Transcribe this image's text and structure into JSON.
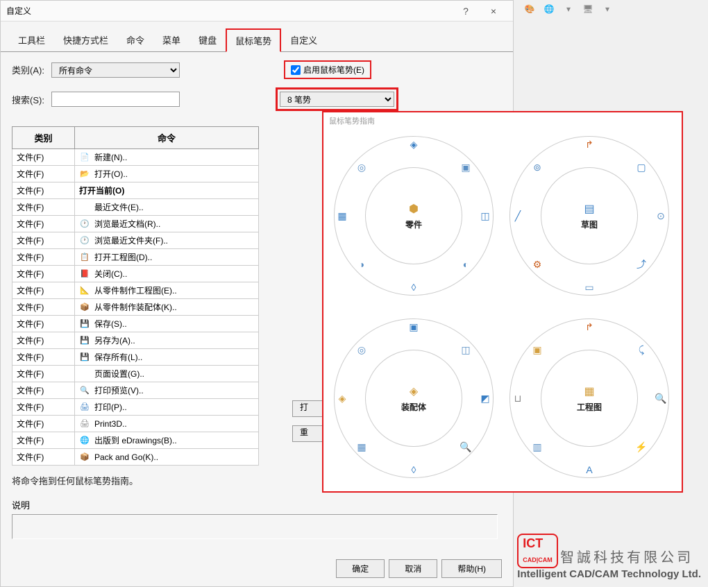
{
  "dialog": {
    "title": "自定义",
    "help_icon": "?",
    "close_icon": "×"
  },
  "tabs": [
    {
      "label": "工具栏",
      "active": false
    },
    {
      "label": "快捷方式栏",
      "active": false
    },
    {
      "label": "命令",
      "active": false
    },
    {
      "label": "菜单",
      "active": false
    },
    {
      "label": "键盘",
      "active": false
    },
    {
      "label": "鼠标笔势",
      "active": true
    },
    {
      "label": "自定义",
      "active": false
    }
  ],
  "form": {
    "category_label": "类别(A):",
    "category_value": "所有命令",
    "enable_gesture_label": "启用鼠标笔势(E)",
    "enable_gesture_checked": true,
    "search_label": "搜索(S):",
    "gesture_count_value": "8 笔势"
  },
  "table": {
    "col_category": "类别",
    "col_command": "命令",
    "rows": [
      {
        "cat": "文件(F)",
        "cmd": "新建(N)..",
        "icon": "📄",
        "icon_color": "#888"
      },
      {
        "cat": "文件(F)",
        "cmd": "打开(O)..",
        "icon": "📂",
        "icon_color": "#d4a040"
      },
      {
        "cat": "文件(F)",
        "cmd": "打开当前(O)",
        "icon": "",
        "bold": true
      },
      {
        "cat": "文件(F)",
        "cmd": "最近文件(E)..",
        "icon": "",
        "indent": true
      },
      {
        "cat": "文件(F)",
        "cmd": "浏览最近文档(R)..",
        "icon": "🕐",
        "icon_color": "#3a7fc4"
      },
      {
        "cat": "文件(F)",
        "cmd": "浏览最近文件夹(F)..",
        "icon": "🕐",
        "icon_color": "#3a7fc4"
      },
      {
        "cat": "文件(F)",
        "cmd": "打开工程图(D)..",
        "icon": "📋",
        "icon_color": "#4a9f4a"
      },
      {
        "cat": "文件(F)",
        "cmd": "关闭(C)..",
        "icon": "📕",
        "icon_color": "#cc4040"
      },
      {
        "cat": "文件(F)",
        "cmd": "从零件制作工程图(E)..",
        "icon": "📐",
        "icon_color": "#d4a040"
      },
      {
        "cat": "文件(F)",
        "cmd": "从零件制作装配体(K)..",
        "icon": "📦",
        "icon_color": "#d4a040"
      },
      {
        "cat": "文件(F)",
        "cmd": "保存(S)..",
        "icon": "💾",
        "icon_color": "#3a7fc4"
      },
      {
        "cat": "文件(F)",
        "cmd": "另存为(A)..",
        "icon": "💾",
        "icon_color": "#3a7fc4"
      },
      {
        "cat": "文件(F)",
        "cmd": "保存所有(L)..",
        "icon": "💾",
        "icon_color": "#3a7fc4"
      },
      {
        "cat": "文件(F)",
        "cmd": "页面设置(G)..",
        "icon": "",
        "indent": true
      },
      {
        "cat": "文件(F)",
        "cmd": "打印预览(V)..",
        "icon": "🔍",
        "icon_color": "#888"
      },
      {
        "cat": "文件(F)",
        "cmd": "打印(P)..",
        "icon": "🖨",
        "icon_color": "#3a7fc4"
      },
      {
        "cat": "文件(F)",
        "cmd": "Print3D..",
        "icon": "🖨",
        "icon_color": "#888"
      },
      {
        "cat": "文件(F)",
        "cmd": "出版到 eDrawings(B)..",
        "icon": "🌐",
        "icon_color": "#d4a040"
      },
      {
        "cat": "文件(F)",
        "cmd": "Pack and Go(K)..",
        "icon": "📦",
        "icon_color": "#888"
      }
    ]
  },
  "hint": "将命令拖到任何鼠标笔势指南。",
  "desc_label": "说明",
  "partial_buttons": [
    "打",
    "重"
  ],
  "buttons": {
    "ok": "确定",
    "cancel": "取消",
    "help": "帮助(H)"
  },
  "gesture_guide": {
    "title": "鼠标笔势指南",
    "wheels": [
      {
        "label": "零件",
        "center_icon": "⬢",
        "center_color": "#d4a040",
        "icons": [
          {
            "glyph": "◈",
            "color": "#3a7fc4"
          },
          {
            "glyph": "▣",
            "color": "#5a8fc4"
          },
          {
            "glyph": "◫",
            "color": "#3a7fc4"
          },
          {
            "glyph": "◐",
            "color": "#5a8fc4"
          },
          {
            "glyph": "◊",
            "color": "#3a7fc4"
          },
          {
            "glyph": "◑",
            "color": "#5a8fc4"
          },
          {
            "glyph": "▦",
            "color": "#3a7fc4"
          },
          {
            "glyph": "◎",
            "color": "#5a8fc4"
          }
        ]
      },
      {
        "label": "草图",
        "center_icon": "▤",
        "center_color": "#3a7fc4",
        "icons": [
          {
            "glyph": "↱",
            "color": "#cc6020"
          },
          {
            "glyph": "▢",
            "color": "#3a7fc4"
          },
          {
            "glyph": "⊙",
            "color": "#5a8fc4"
          },
          {
            "glyph": "⤴",
            "color": "#3a7fc4"
          },
          {
            "glyph": "▭",
            "color": "#5a8fc4"
          },
          {
            "glyph": "⚙",
            "color": "#cc6020"
          },
          {
            "glyph": "╱",
            "color": "#3a7fc4"
          },
          {
            "glyph": "⊚",
            "color": "#5a8fc4"
          }
        ]
      },
      {
        "label": "装配体",
        "center_icon": "◈",
        "center_color": "#d4a040",
        "icons": [
          {
            "glyph": "▣",
            "color": "#3a7fc4"
          },
          {
            "glyph": "◫",
            "color": "#5a8fc4"
          },
          {
            "glyph": "◩",
            "color": "#3a7fc4"
          },
          {
            "glyph": "🔍",
            "color": "#5a8fc4"
          },
          {
            "glyph": "◊",
            "color": "#3a7fc4"
          },
          {
            "glyph": "▦",
            "color": "#5a8fc4"
          },
          {
            "glyph": "◈",
            "color": "#d4a040"
          },
          {
            "glyph": "◎",
            "color": "#5a8fc4"
          }
        ]
      },
      {
        "label": "工程图",
        "center_icon": "▦",
        "center_color": "#d4a040",
        "icons": [
          {
            "glyph": "↱",
            "color": "#cc6020"
          },
          {
            "glyph": "⤹",
            "color": "#3a7fc4"
          },
          {
            "glyph": "🔍",
            "color": "#5a8fc4"
          },
          {
            "glyph": "⚡",
            "color": "#cc6020"
          },
          {
            "glyph": "A",
            "color": "#3a7fc4"
          },
          {
            "glyph": "▥",
            "color": "#5a8fc4"
          },
          {
            "glyph": "⊔",
            "color": "#888"
          },
          {
            "glyph": "▣",
            "color": "#d4a040"
          }
        ]
      }
    ]
  },
  "top_toolbar": [
    {
      "glyph": "🎨",
      "color": "#cc6020"
    },
    {
      "glyph": "🌐",
      "color": "#4a9f4a"
    },
    {
      "glyph": "▾",
      "color": "#888"
    },
    {
      "glyph": "🖥",
      "color": "#888"
    },
    {
      "glyph": "▾",
      "color": "#888"
    }
  ],
  "watermark": {
    "logo": "ICT",
    "sub": "CAD|CAM",
    "cn": "智誠科技有限公司",
    "en": "Intelligent CAD/CAM Technology Ltd."
  },
  "highlight_color": "#e41b1f"
}
